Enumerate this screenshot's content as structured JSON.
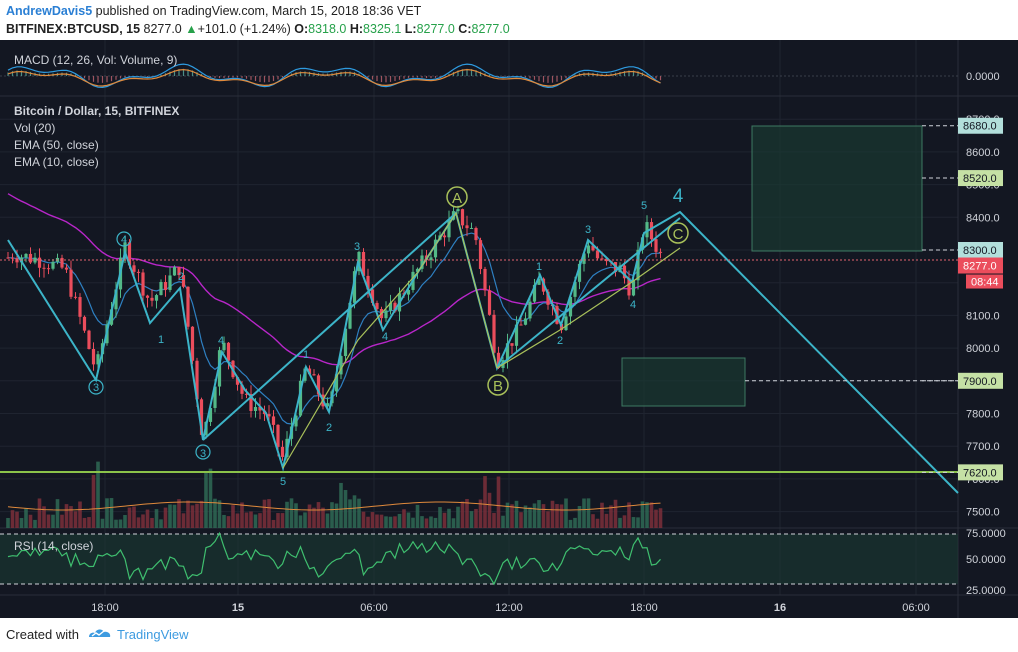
{
  "header": {
    "author": "AndrewDavis5",
    "published_text": " published on TradingView.com, March 15, 2018 18:36 VET",
    "symbol": "BITFINEX:BTCUSD, 15",
    "last": "8277.0",
    "change_arrow": "▲",
    "change": "+101.0 (+1.24%)",
    "o_label": "O:",
    "o_value": "8318.0",
    "h_label": "H:",
    "h_value": "8325.1",
    "l_label": "L:",
    "l_value": "8277.0",
    "c_label": "C:",
    "c_value": "8277.0"
  },
  "panes": {
    "macd": "MACD (12, 26, Vol: Volume, 9)",
    "main_title": "Bitcoin / Dollar, 15, BITFINEX",
    "vol": "Vol (20)",
    "ema50": "EMA (50, close)",
    "ema10": "EMA (10, close)",
    "rsi": "RSI (14, close)"
  },
  "price_axis": {
    "macd_zero": "0.0000",
    "ticks": [
      "8700.0",
      "8600.0",
      "8500.0",
      "8400.0",
      "8300.0",
      "8200.0",
      "8100.0",
      "8000.0",
      "7900.0",
      "7800.0",
      "7700.0",
      "7600.0",
      "7500.0"
    ],
    "tags": [
      {
        "text": "8680.0",
        "price": 8680,
        "color": "#b2dfdb"
      },
      {
        "text": "8520.0",
        "price": 8520,
        "color": "#c5e1a5"
      },
      {
        "text": "8300.0",
        "price": 8300,
        "color": "#b2dfdb"
      },
      {
        "text": "7900.0",
        "price": 7900,
        "color": "#c5e1a5"
      },
      {
        "text": "7620.0",
        "price": 7620,
        "color": "#c5e1a5"
      }
    ],
    "current_price": "8277.0",
    "countdown": "08:44",
    "rsi_ticks": [
      "75.0000",
      "50.0000",
      "25.0000"
    ]
  },
  "time_axis": [
    "18:00",
    "15",
    "06:00",
    "12:00",
    "18:00",
    "16",
    "06:00"
  ],
  "wave_labels": {
    "w4_left": "4",
    "w3_left": "3",
    "w3_low": "3",
    "w5_low": "5",
    "minor_2a": "2",
    "minor_1a": "1",
    "minor_4a": "4",
    "minor_1b": "1",
    "minor_2b": "2",
    "minor_3b": "3",
    "minor_4b": "4",
    "wave_A": "A",
    "wave_B": "B",
    "wave_C": "C",
    "minor_1c": "1",
    "minor_2c": "2",
    "minor_3c": "3",
    "minor_4c": "4",
    "minor_5c": "5",
    "big_4": "4"
  },
  "footer": {
    "created": "Created with",
    "brand": "TradingView"
  },
  "colors": {
    "background": "#131722",
    "up_candle": "#53b987",
    "down_candle": "#eb4d5c",
    "ema10": "#2e80c2",
    "ema50": "#b826c9",
    "trendline": "#3cb4c8",
    "wave_green": "#a8c05a",
    "support_line": "#8bc34a",
    "rsi_fill": "#1b3a34"
  }
}
